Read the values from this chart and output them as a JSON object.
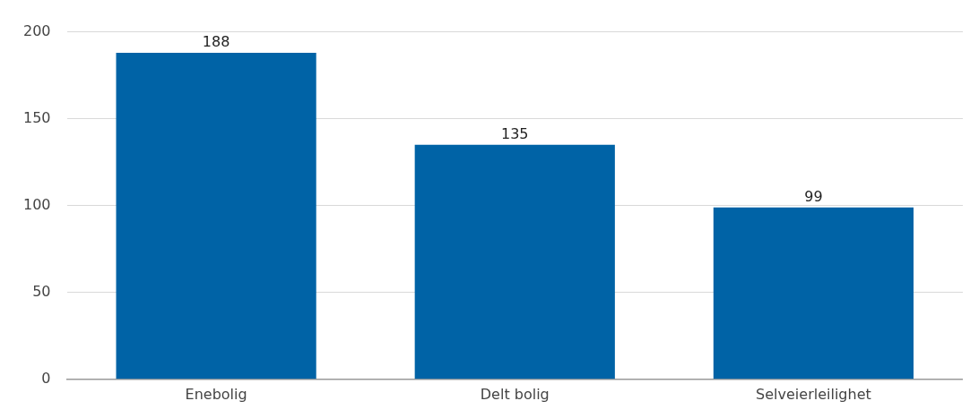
{
  "chart_data": {
    "type": "bar",
    "categories": [
      "Enebolig",
      "Delt bolig",
      "Selveierleilighet"
    ],
    "values": [
      188,
      135,
      99
    ],
    "color": "#0063a6",
    "ylim": [
      0,
      200
    ],
    "yticks": [
      0,
      50,
      100,
      150,
      200
    ],
    "grid": "y",
    "data_labels": true,
    "legend": false
  }
}
